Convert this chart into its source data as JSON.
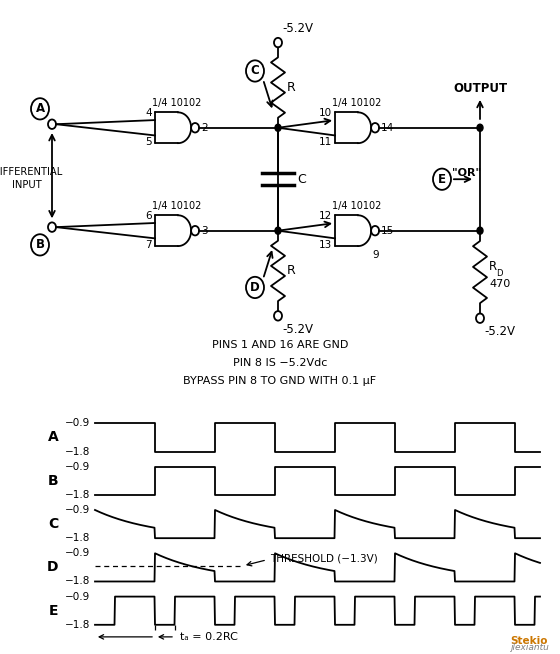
{
  "bg_color": "#ffffff",
  "circuit": {
    "vcc_top": "-5.2V",
    "vcc_bot_left": "-5.2V",
    "vcc_bot_right": "-5.2V",
    "output": "OUTPUT",
    "diff_input_line1": "DIFFERENTIAL",
    "diff_input_line2": "INPUT",
    "label_A": "A",
    "label_B": "B",
    "label_C": "C",
    "label_D": "D",
    "label_E": "E",
    "gate_label": "1/4 10102",
    "cap_C": "C",
    "res_R": "R",
    "or_label": "\"OR\"",
    "rd_label": "R",
    "rd_sub": "D",
    "rd_val": "470",
    "pins1": "PINS 1 AND 16 ARE GND",
    "pins2": "PIN 8 IS −5.2Vdc",
    "pins3": "BYPASS PIN 8 TO GND WITH 0.1 μF"
  },
  "waveform": {
    "high": -0.9,
    "low": -1.8,
    "threshold": -1.3,
    "labels": [
      "A",
      "B",
      "C",
      "D",
      "E"
    ]
  }
}
